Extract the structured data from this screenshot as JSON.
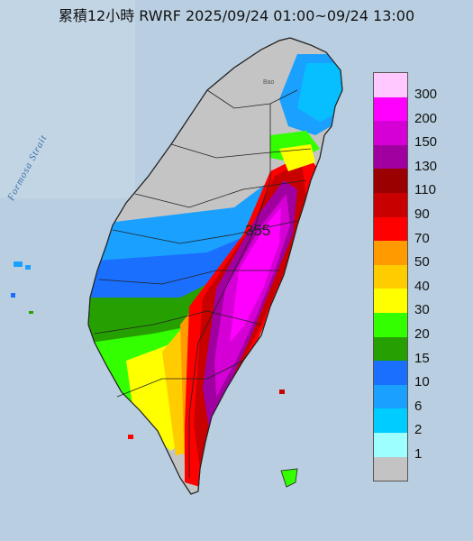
{
  "title": "累積12小時 RWRF 2025/09/24 01:00~09/24 13:00",
  "strait_label": "Formosa Strait",
  "place_label": "Bao",
  "max_value": "355",
  "legend": {
    "labels": [
      "300",
      "200",
      "150",
      "130",
      "110",
      "90",
      "70",
      "50",
      "40",
      "30",
      "20",
      "15",
      "10",
      "6",
      "2",
      "1"
    ],
    "colors": [
      "#ffc8ff",
      "#ff00ff",
      "#d500d5",
      "#a000a0",
      "#9b0000",
      "#c80000",
      "#ff0000",
      "#ff9a00",
      "#ffcc00",
      "#ffff00",
      "#33ff00",
      "#26a000",
      "#1a6fff",
      "#1aa0ff",
      "#00ccff",
      "#9dffff",
      "#c3c3c3"
    ]
  }
}
